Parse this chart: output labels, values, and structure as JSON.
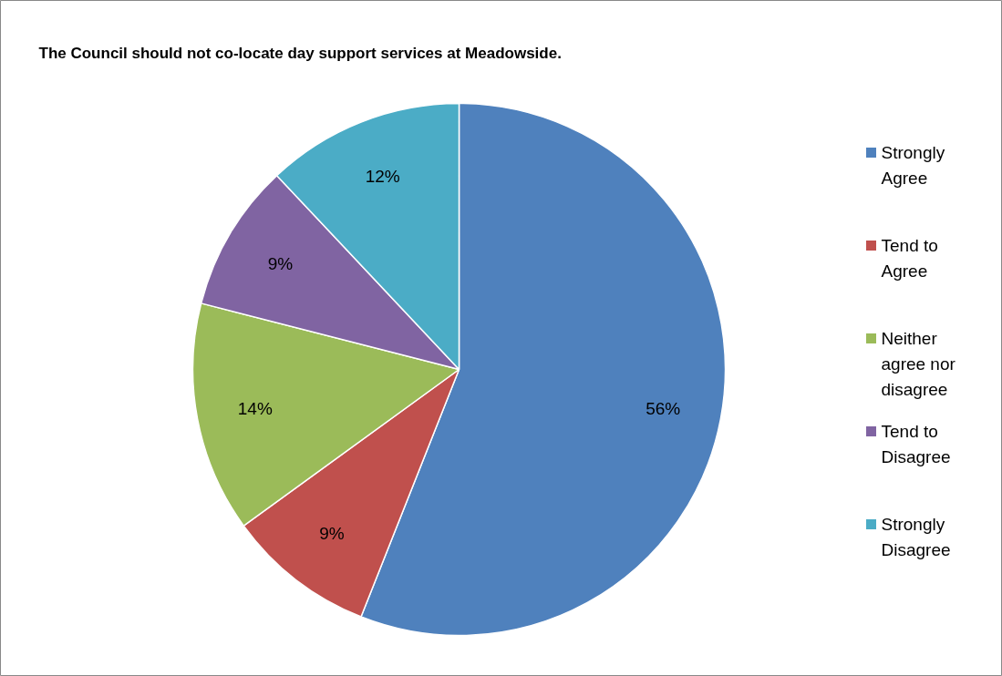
{
  "chart_data": {
    "type": "pie",
    "title": "The Council should not co-locate day support services at Meadowside.",
    "categories": [
      "Strongly Agree",
      "Tend to Agree",
      "Neither agree nor disagree",
      "Tend to Disagree",
      "Strongly Disagree"
    ],
    "values": [
      56,
      9,
      14,
      9,
      12
    ],
    "colors": [
      "#4f81bd",
      "#c0504d",
      "#9bbb59",
      "#8064a2",
      "#4bacc6"
    ],
    "value_labels": [
      "56%",
      "9%",
      "14%",
      "9%",
      "12%"
    ],
    "legend": "right"
  }
}
